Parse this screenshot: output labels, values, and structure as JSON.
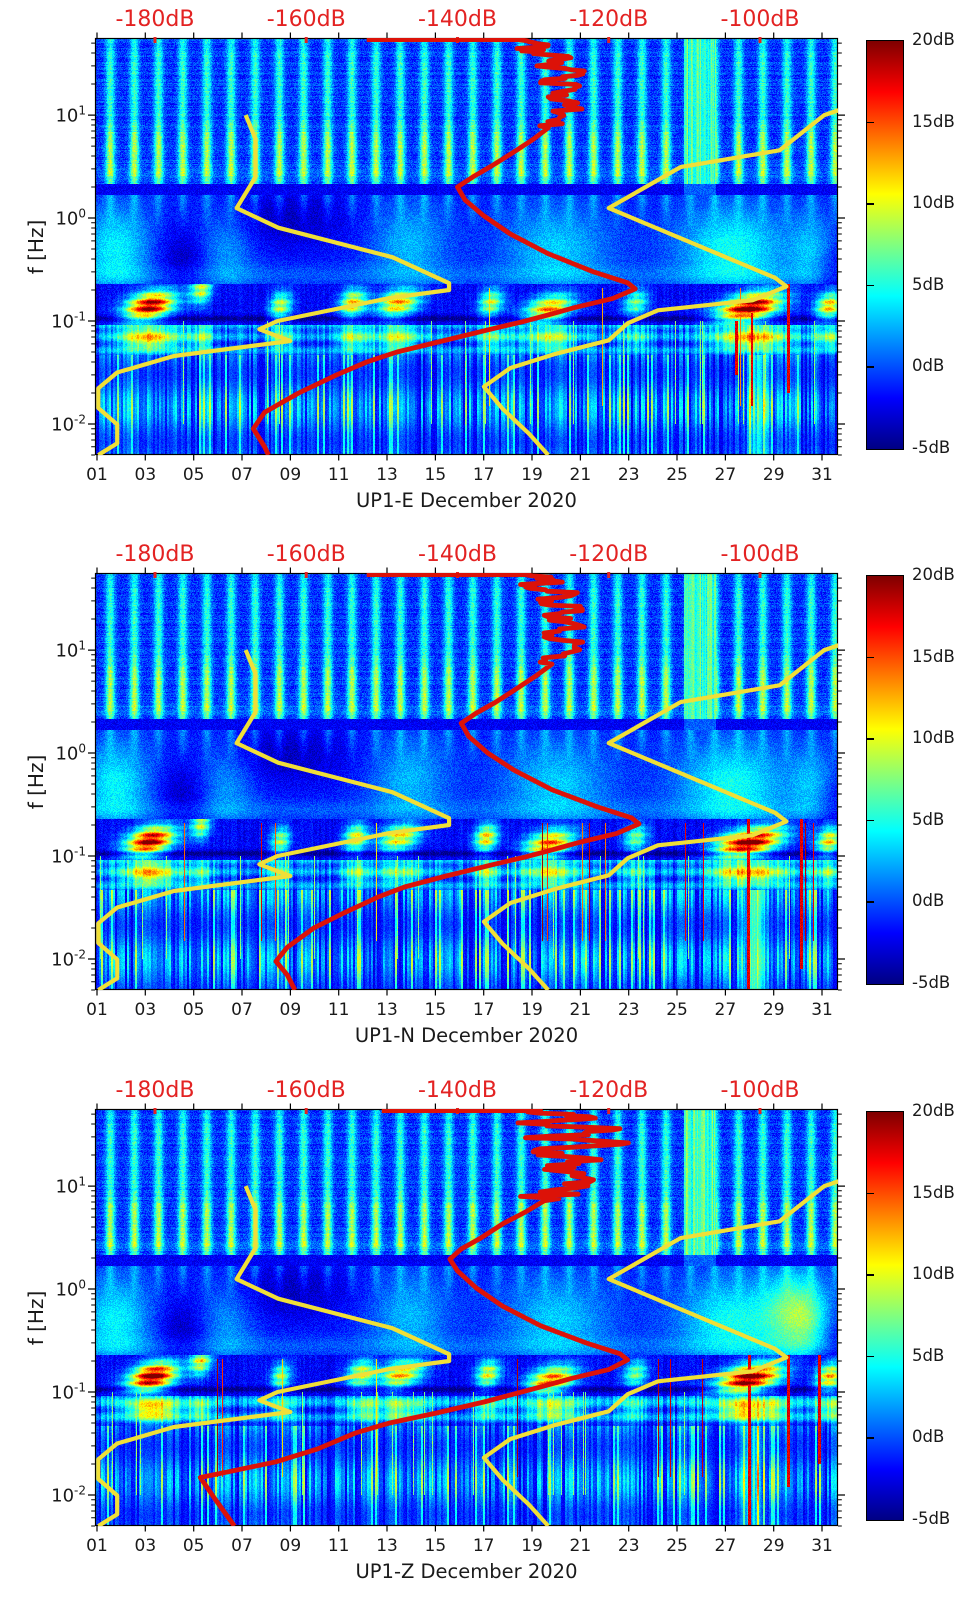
{
  "figure": {
    "background": "#ffffff",
    "text_color": "#1a1a1a",
    "label_red": "#e32222",
    "curve_red": "#dc1208",
    "curve_yellow": "#f0df38"
  },
  "axes": {
    "ylabel": "f [Hz]",
    "x_ticklabels": [
      "01",
      "03",
      "05",
      "07",
      "09",
      "11",
      "13",
      "15",
      "17",
      "19",
      "21",
      "23",
      "25",
      "27",
      "29",
      "31"
    ],
    "y_ticks": [
      {
        "base": "10",
        "exp": "1",
        "hz": 10
      },
      {
        "base": "10",
        "exp": "0",
        "hz": 1
      },
      {
        "base": "10",
        "exp": "-1",
        "hz": 0.1
      },
      {
        "base": "10",
        "exp": "-2",
        "hz": 0.01
      }
    ],
    "top_axis_labels": [
      "-180dB",
      "-160dB",
      "-140dB",
      "-120dB",
      "-100dB"
    ],
    "colorbar_labels": [
      "20dB",
      "15dB",
      "10dB",
      "5dB",
      "0dB",
      "-5dB"
    ]
  },
  "chart_data": {
    "type": "heatmap",
    "description": "Three seismic power-spectral-density spectrograms (station UP1, components E/N/Z, December 2020) with jet colormap, overlaid with Peterson NLNM/NHNM reference curves (yellow) and the observed median PSD curve (red) referenced to the red top dB axis.",
    "x_axis": {
      "unit": "day of December 2020",
      "range_days": [
        0.917,
        31.66
      ],
      "labeled_tick_days": [
        1,
        3,
        5,
        7,
        9,
        11,
        13,
        15,
        17,
        19,
        21,
        23,
        25,
        27,
        29,
        31
      ]
    },
    "y_axis": {
      "unit": "Hz",
      "scale": "log",
      "range_hz": [
        0.005,
        56
      ],
      "decade_ticks_hz": [
        10,
        1,
        0.1,
        0.01
      ]
    },
    "top_axis": {
      "unit": "dB",
      "tick_dbs": [
        -180,
        -160,
        -140,
        -120,
        -100
      ],
      "db_at_left_edge": -187.93,
      "db_at_right_edge": -89.68
    },
    "colorbar": {
      "range_db": [
        -5,
        20
      ],
      "tick_dbs": [
        20,
        15,
        10,
        5,
        0,
        -5
      ],
      "colormap": "jet"
    },
    "noise_models": {
      "nlnm_db_hz": [
        [
          -168,
          10
        ],
        [
          -166.7,
          5.88
        ],
        [
          -166.7,
          2.5
        ],
        [
          -169.2,
          1.25
        ],
        [
          -163.7,
          0.806
        ],
        [
          -148.6,
          0.417
        ],
        [
          -141.1,
          0.233
        ],
        [
          -141.1,
          0.2
        ],
        [
          -149,
          0.167
        ],
        [
          -163.8,
          0.1
        ],
        [
          -166.2,
          0.083
        ],
        [
          -162.1,
          0.064
        ],
        [
          -177.5,
          0.0457
        ],
        [
          -185,
          0.0316
        ],
        [
          -187.5,
          0.0222
        ],
        [
          -187.5,
          0.0143
        ],
        [
          -185,
          0.0099
        ],
        [
          -185,
          0.0065
        ],
        [
          -187.5,
          0.005
        ]
      ],
      "nhnm_db_hz": [
        [
          -89,
          11.5
        ],
        [
          -91.5,
          10
        ],
        [
          -97.4,
          4.55
        ],
        [
          -110.5,
          3.12
        ],
        [
          -120,
          1.25
        ],
        [
          -98,
          0.263
        ],
        [
          -96.5,
          0.217
        ],
        [
          -101,
          0.159
        ],
        [
          -113.5,
          0.127
        ],
        [
          -117.5,
          0.095
        ],
        [
          -120,
          0.065
        ],
        [
          -127,
          0.048
        ],
        [
          -133,
          0.035
        ],
        [
          -136.5,
          0.023
        ],
        [
          -134,
          0.014
        ],
        [
          -130.5,
          0.008
        ],
        [
          -128,
          0.005
        ]
      ]
    },
    "texture": {
      "bands_hz": {
        "daily_stripes": [
          2.15,
          56
        ],
        "transition": [
          1.68,
          2.15
        ],
        "mid": [
          0.23,
          1.68
        ],
        "microseism": [
          0.0915,
          0.23
        ],
        "secondary": [
          0.0465,
          0.0915
        ],
        "low_columns": [
          0.005,
          0.0465
        ]
      },
      "daily_stripe_count": 31,
      "holes": [
        [
          8.8,
          3.0,
          2.2,
          1.0
        ],
        [
          4.6,
          1.2,
          2.5,
          0.38
        ],
        [
          31.2,
          1.2,
          3.0,
          0.25
        ]
      ]
    },
    "panels": [
      {
        "id": "UP1-E",
        "title": "UP1-E December 2020",
        "seed": 11,
        "jag": 2.2,
        "pale_column_days": [
          25.3,
          26.6
        ],
        "median_psd_db_hz": [
          [
            -152,
            54
          ],
          [
            -132,
            54
          ],
          [
            -128,
            48
          ],
          [
            -131.5,
            42
          ],
          [
            -125,
            36
          ],
          [
            -129.5,
            30
          ],
          [
            -124,
            26
          ],
          [
            -128.5,
            22
          ],
          [
            -124.5,
            18.5
          ],
          [
            -128,
            15
          ],
          [
            -125,
            12
          ],
          [
            -126.5,
            9.5
          ],
          [
            -128,
            7.5
          ],
          [
            -130,
            5.8
          ],
          [
            -132.5,
            4.4
          ],
          [
            -135.5,
            3.2
          ],
          [
            -138,
            2.5
          ],
          [
            -140,
            2.0
          ],
          [
            -139,
            1.5
          ],
          [
            -136.5,
            1.05
          ],
          [
            -133,
            0.7
          ],
          [
            -128,
            0.45
          ],
          [
            -122,
            0.3
          ],
          [
            -117.5,
            0.235
          ],
          [
            -116.5,
            0.205
          ],
          [
            -119.5,
            0.165
          ],
          [
            -124.5,
            0.135
          ],
          [
            -128.5,
            0.112
          ],
          [
            -131.5,
            0.098
          ],
          [
            -136,
            0.082
          ],
          [
            -142,
            0.064
          ],
          [
            -148,
            0.05
          ],
          [
            -152,
            0.04
          ],
          [
            -156,
            0.03
          ],
          [
            -161,
            0.02
          ],
          [
            -165.5,
            0.013
          ],
          [
            -167,
            0.009
          ],
          [
            -165.5,
            0.006
          ],
          [
            -165,
            0.005
          ]
        ],
        "storms": [
          [
            3.2,
            1.0,
            21,
            0.14
          ],
          [
            5.3,
            0.45,
            11,
            0.2
          ],
          [
            8.6,
            0.45,
            11,
            0.14
          ],
          [
            11.6,
            0.55,
            13,
            0.15
          ],
          [
            13.5,
            0.9,
            14,
            0.15
          ],
          [
            17.3,
            0.5,
            11,
            0.15
          ],
          [
            19.7,
            1.0,
            15,
            0.13
          ],
          [
            23.3,
            0.5,
            9,
            0.15
          ],
          [
            28.0,
            1.3,
            22,
            0.135
          ],
          [
            31.3,
            0.55,
            14,
            0.14
          ]
        ],
        "clouds": [
          [
            1.8,
            1.5,
            5.5,
            0.5
          ],
          [
            6.3,
            1.2,
            3.5,
            0.5
          ],
          [
            13.9,
            1.6,
            4.0,
            0.55
          ],
          [
            20.0,
            2.2,
            4.5,
            0.5
          ],
          [
            27.3,
            2.3,
            6.0,
            0.5
          ],
          [
            30.6,
            0.9,
            4.5,
            0.4
          ]
        ],
        "red_lines": [
          [
            29.6,
            0.02,
            0.55
          ],
          [
            27.45,
            0.03,
            0.1
          ],
          [
            28.1,
            0.015,
            0.12
          ]
        ],
        "yellow_cols": [
          [
            28.3,
            0.4,
            6
          ]
        ]
      },
      {
        "id": "UP1-N",
        "title": "UP1-N December 2020",
        "seed": 23,
        "jag": 2.2,
        "pale_column_days": [
          25.3,
          26.6
        ],
        "median_psd_db_hz": [
          [
            -152,
            54
          ],
          [
            -131,
            54
          ],
          [
            -127.5,
            47
          ],
          [
            -131,
            41
          ],
          [
            -124.5,
            35
          ],
          [
            -129,
            29
          ],
          [
            -123.5,
            25
          ],
          [
            -128,
            21
          ],
          [
            -124,
            17.5
          ],
          [
            -127.5,
            14
          ],
          [
            -124.5,
            11.5
          ],
          [
            -126,
            9.2
          ],
          [
            -127.5,
            7.3
          ],
          [
            -129.5,
            5.7
          ],
          [
            -132,
            4.3
          ],
          [
            -135,
            3.1
          ],
          [
            -137.5,
            2.45
          ],
          [
            -139.5,
            1.95
          ],
          [
            -138.5,
            1.45
          ],
          [
            -136,
            1.0
          ],
          [
            -132.5,
            0.68
          ],
          [
            -127.5,
            0.44
          ],
          [
            -121.5,
            0.3
          ],
          [
            -117,
            0.235
          ],
          [
            -116,
            0.205
          ],
          [
            -119,
            0.165
          ],
          [
            -124,
            0.135
          ],
          [
            -128,
            0.112
          ],
          [
            -131,
            0.098
          ],
          [
            -135.5,
            0.082
          ],
          [
            -141.5,
            0.064
          ],
          [
            -147,
            0.05
          ],
          [
            -150.5,
            0.04
          ],
          [
            -155,
            0.028
          ],
          [
            -159,
            0.02
          ],
          [
            -162.5,
            0.013
          ],
          [
            -164,
            0.0095
          ],
          [
            -162.5,
            0.007
          ],
          [
            -161.5,
            0.005
          ]
        ],
        "storms": [
          [
            3.2,
            1.0,
            21,
            0.14
          ],
          [
            5.3,
            0.4,
            11,
            0.2
          ],
          [
            8.6,
            0.4,
            10,
            0.14
          ],
          [
            11.7,
            0.5,
            12,
            0.15
          ],
          [
            13.5,
            0.85,
            13,
            0.15
          ],
          [
            17.1,
            0.5,
            13,
            0.15
          ],
          [
            19.7,
            1.0,
            16,
            0.13
          ],
          [
            23.3,
            0.5,
            9,
            0.15
          ],
          [
            28.0,
            1.35,
            22,
            0.135
          ],
          [
            31.3,
            0.55,
            13,
            0.14
          ]
        ],
        "clouds": [
          [
            1.8,
            1.5,
            5.5,
            0.5
          ],
          [
            6.3,
            1.2,
            3.5,
            0.5
          ],
          [
            13.9,
            1.6,
            4.0,
            0.55
          ],
          [
            20.0,
            2.2,
            4.5,
            0.5
          ],
          [
            27.3,
            2.3,
            6.0,
            0.5
          ],
          [
            30.6,
            0.9,
            4.5,
            0.4
          ]
        ],
        "red_lines": [
          [
            27.95,
            0.004,
            0.4
          ],
          [
            30.15,
            0.008,
            0.3
          ]
        ],
        "yellow_cols": [
          [
            28.2,
            0.5,
            9
          ]
        ]
      },
      {
        "id": "UP1-Z",
        "title": "UP1-Z December 2020",
        "seed": 37,
        "jag": 3.8,
        "pale_column_days": [
          25.3,
          26.6
        ],
        "median_psd_db_hz": [
          [
            -150,
            54
          ],
          [
            -129,
            54
          ],
          [
            -122.5,
            47
          ],
          [
            -132,
            41
          ],
          [
            -119.5,
            35
          ],
          [
            -131,
            29.5
          ],
          [
            -118.5,
            25.5
          ],
          [
            -130,
            21.5
          ],
          [
            -121,
            18
          ],
          [
            -128.5,
            14.5
          ],
          [
            -122,
            11.5
          ],
          [
            -127,
            9.2
          ],
          [
            -128.5,
            7.2
          ],
          [
            -131,
            5.6
          ],
          [
            -134,
            4.3
          ],
          [
            -137,
            3.1
          ],
          [
            -139.5,
            2.45
          ],
          [
            -141,
            1.95
          ],
          [
            -140,
            1.5
          ],
          [
            -137.5,
            1.02
          ],
          [
            -134,
            0.68
          ],
          [
            -129,
            0.44
          ],
          [
            -123,
            0.3
          ],
          [
            -118.5,
            0.235
          ],
          [
            -117.5,
            0.205
          ],
          [
            -120,
            0.165
          ],
          [
            -125,
            0.135
          ],
          [
            -129,
            0.112
          ],
          [
            -132,
            0.098
          ],
          [
            -136.5,
            0.08
          ],
          [
            -143,
            0.062
          ],
          [
            -149,
            0.05
          ],
          [
            -153.5,
            0.04
          ],
          [
            -158.5,
            0.028
          ],
          [
            -164,
            0.021
          ],
          [
            -170,
            0.017
          ],
          [
            -174,
            0.0148
          ],
          [
            -172,
            0.009
          ],
          [
            -169.5,
            0.005
          ]
        ],
        "storms": [
          [
            3.3,
            1.0,
            22,
            0.14
          ],
          [
            5.3,
            0.45,
            12,
            0.2
          ],
          [
            8.6,
            0.4,
            10,
            0.14
          ],
          [
            11.9,
            0.55,
            12,
            0.15
          ],
          [
            13.6,
            0.9,
            14,
            0.15
          ],
          [
            17.2,
            0.5,
            12,
            0.15
          ],
          [
            19.8,
            1.0,
            16,
            0.13
          ],
          [
            23.3,
            0.5,
            9,
            0.15
          ],
          [
            28.0,
            1.3,
            22,
            0.135
          ],
          [
            31.3,
            0.55,
            14,
            0.14
          ]
        ],
        "clouds": [
          [
            1.8,
            1.5,
            5.5,
            0.5
          ],
          [
            6.3,
            1.2,
            3.5,
            0.5
          ],
          [
            13.9,
            1.6,
            4.0,
            0.55
          ],
          [
            20.0,
            2.2,
            4.5,
            0.5
          ],
          [
            27.3,
            2.3,
            6.0,
            0.5
          ],
          [
            30.6,
            0.9,
            4.5,
            0.4
          ],
          [
            29.8,
            1.2,
            6.5,
            0.6
          ]
        ],
        "red_lines": [
          [
            28.0,
            0.004,
            0.3
          ],
          [
            29.6,
            0.012,
            0.5
          ],
          [
            30.9,
            0.02,
            0.25
          ]
        ],
        "yellow_cols": [
          [
            28.2,
            0.4,
            7
          ]
        ]
      }
    ]
  }
}
